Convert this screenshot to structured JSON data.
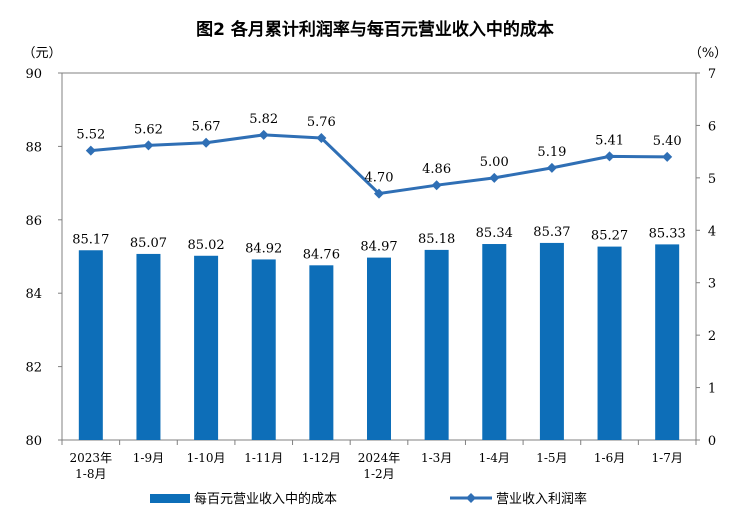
{
  "chart_data": {
    "type": "bar",
    "title": "图2  各月累计利润率与每百元营业收入中的成本",
    "left_unit": "（元）",
    "right_unit": "（%）",
    "categories": [
      [
        "2023年",
        "1-8月"
      ],
      [
        "1-9月"
      ],
      [
        "1-10月"
      ],
      [
        "1-11月"
      ],
      [
        "1-12月"
      ],
      [
        "2024年",
        "1-2月"
      ],
      [
        "1-3月"
      ],
      [
        "1-4月"
      ],
      [
        "1-5月"
      ],
      [
        "1-6月"
      ],
      [
        "1-7月"
      ]
    ],
    "series": [
      {
        "name": "每百元营业收入中的成本",
        "type": "bar",
        "axis": "left",
        "color": "#0d6eb8",
        "values": [
          85.17,
          85.07,
          85.02,
          84.92,
          84.76,
          84.97,
          85.18,
          85.34,
          85.37,
          85.27,
          85.33
        ],
        "labels": [
          "85.17",
          "85.07",
          "85.02",
          "84.92",
          "84.76",
          "84.97",
          "85.18",
          "85.34",
          "85.37",
          "85.27",
          "85.33"
        ]
      },
      {
        "name": "营业收入利润率",
        "type": "line",
        "axis": "right",
        "color": "#2f6fb5",
        "values": [
          5.52,
          5.62,
          5.67,
          5.82,
          5.76,
          4.7,
          4.86,
          5.0,
          5.19,
          5.41,
          5.4
        ],
        "labels": [
          "5.52",
          "5.62",
          "5.67",
          "5.82",
          "5.76",
          "4.70",
          "4.86",
          "5.00",
          "5.19",
          "5.41",
          "5.40"
        ]
      }
    ],
    "left_axis": {
      "min": 80,
      "max": 90,
      "ticks": [
        "80",
        "82",
        "84",
        "86",
        "88",
        "90"
      ]
    },
    "right_axis": {
      "min": 0,
      "max": 7,
      "ticks": [
        "0",
        "1",
        "2",
        "3",
        "4",
        "5",
        "6",
        "7"
      ]
    },
    "grid": false,
    "legend_position": "bottom"
  }
}
